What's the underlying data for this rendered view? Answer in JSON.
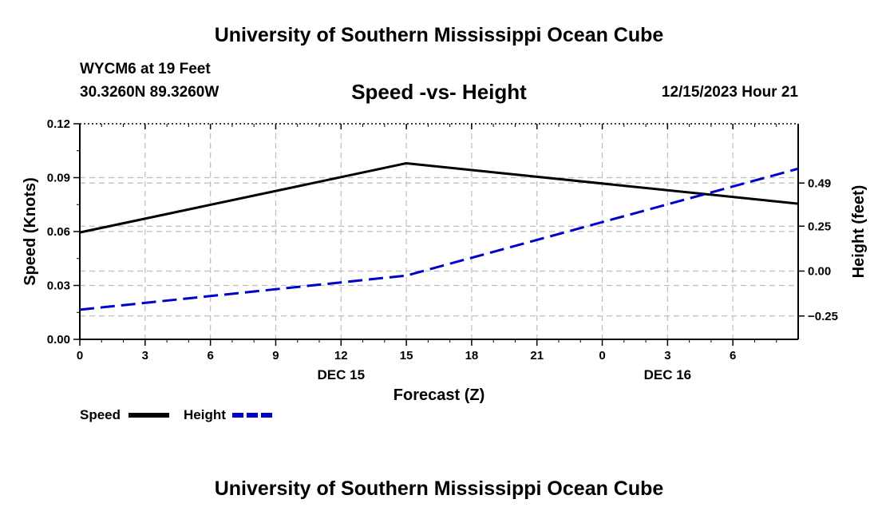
{
  "header": {
    "title": "University of Southern Mississippi Ocean Cube",
    "station": "WYCM6 at 19 Feet",
    "coords": "30.3260N  89.3260W",
    "timestamp": "12/15/2023 Hour 21"
  },
  "footer": {
    "title": "University of Southern Mississippi Ocean Cube"
  },
  "chart_data": {
    "type": "line",
    "title": "Speed -vs- Height",
    "xlabel": "Forecast (Z)",
    "ylabel": "Speed (Knots)",
    "y2label": "Height (feet)",
    "x_hours": [
      0,
      15,
      33
    ],
    "xlim": [
      0,
      33
    ],
    "xticks": [
      {
        "h": 0,
        "label": "0"
      },
      {
        "h": 3,
        "label": "3"
      },
      {
        "h": 6,
        "label": "6"
      },
      {
        "h": 9,
        "label": "9"
      },
      {
        "h": 12,
        "label": "12"
      },
      {
        "h": 15,
        "label": "15"
      },
      {
        "h": 18,
        "label": "18"
      },
      {
        "h": 21,
        "label": "21"
      },
      {
        "h": 24,
        "label": "0"
      },
      {
        "h": 27,
        "label": "3"
      },
      {
        "h": 30,
        "label": "6"
      }
    ],
    "date_labels": [
      {
        "h": 12,
        "label": "DEC 15"
      },
      {
        "h": 27,
        "label": "DEC 16"
      }
    ],
    "ylim": [
      0,
      0.12
    ],
    "yticks": [
      "0.00",
      "0.03",
      "0.06",
      "0.09",
      "0.12"
    ],
    "y2lim": [
      -0.38,
      0.82
    ],
    "y2ticks": [
      "-0.25",
      "0.00",
      "0.25",
      "0.49"
    ],
    "series": [
      {
        "name": "Speed",
        "axis": "left",
        "color": "#000000",
        "dash": "solid",
        "values": [
          0.0595,
          0.098,
          0.0755
        ]
      },
      {
        "name": "Height",
        "axis": "right",
        "color": "#0000cc",
        "dash": "dashed",
        "values": [
          -0.215,
          -0.025,
          0.57
        ]
      }
    ],
    "legend": [
      "Speed",
      "Height"
    ],
    "legend_position": "bottom-left",
    "grid": true
  }
}
